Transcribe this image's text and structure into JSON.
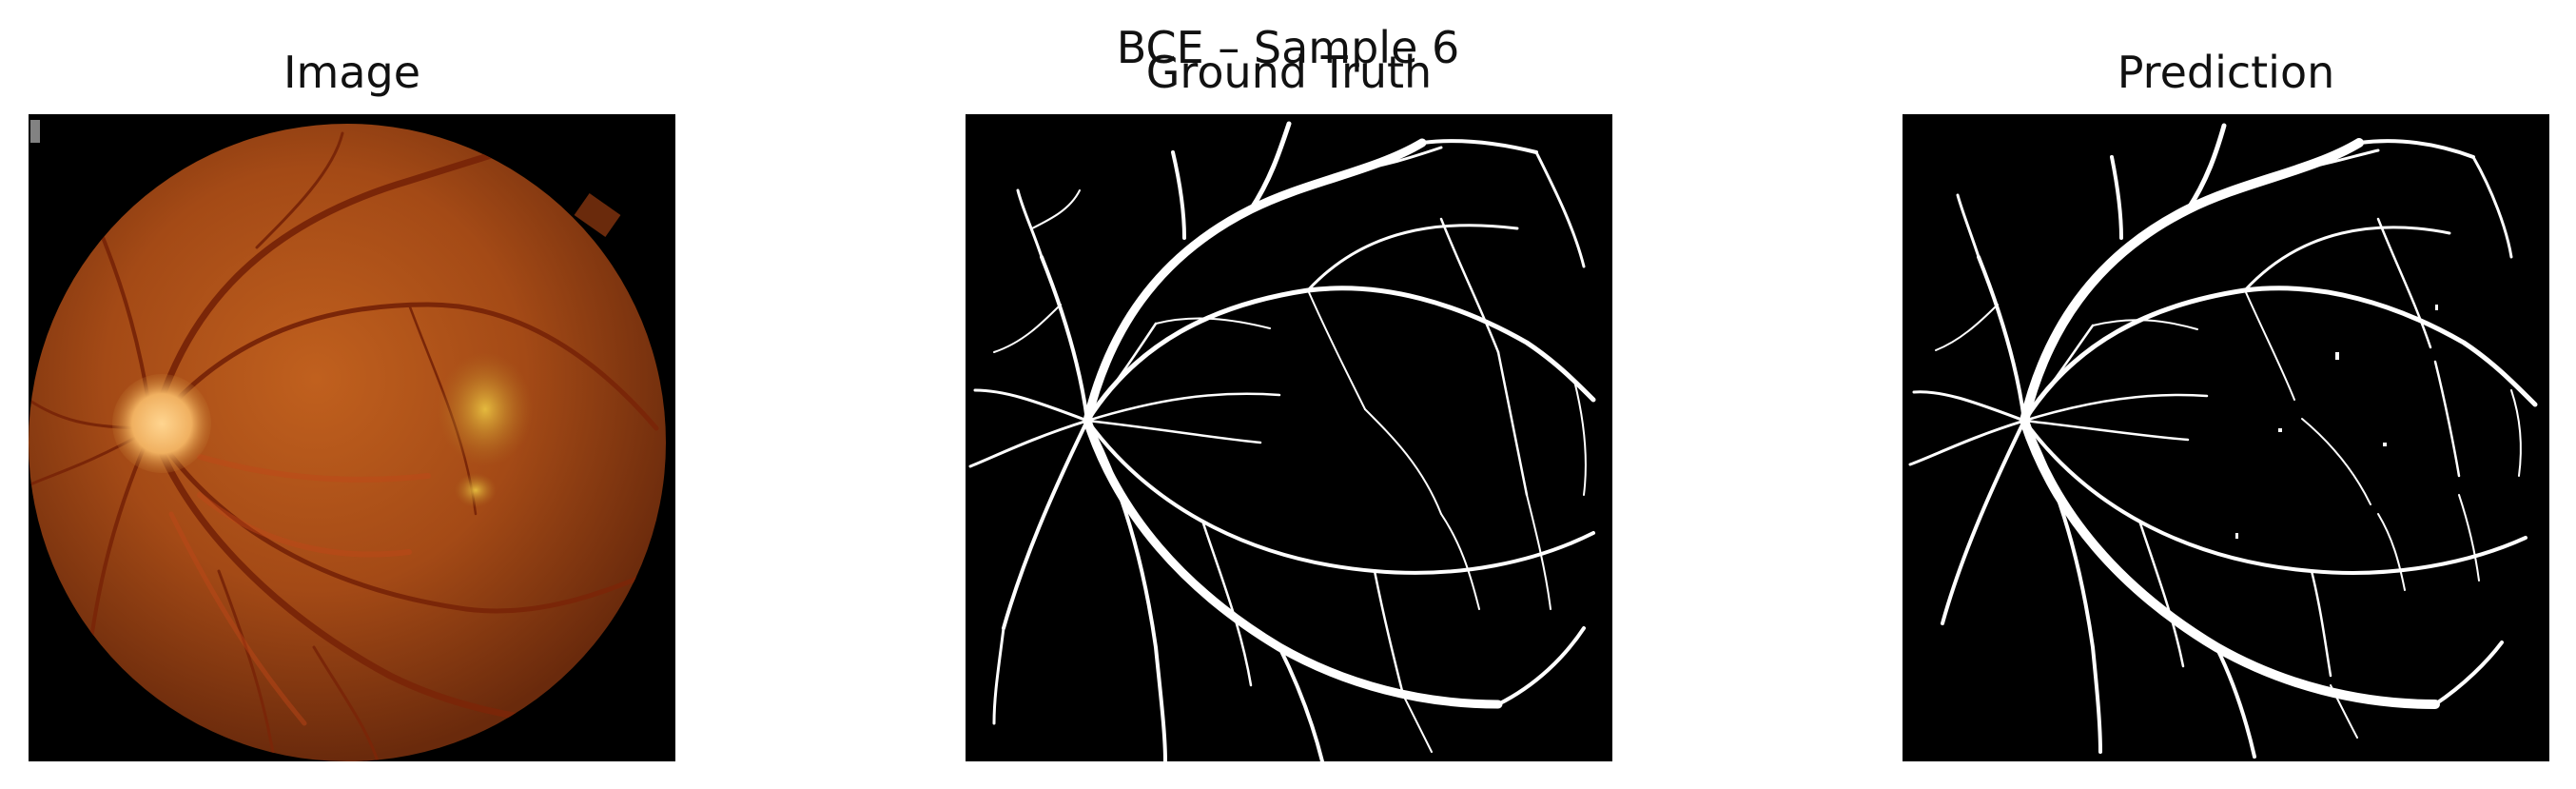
{
  "figure": {
    "suptitle": "BCE – Sample 6",
    "panels": [
      {
        "title": "Image",
        "content": "retinal fundus photograph"
      },
      {
        "title": "Ground Truth",
        "content": "binary vessel mask"
      },
      {
        "title": "Prediction",
        "content": "predicted vessel mask"
      }
    ]
  },
  "colors": {
    "background": "#000000",
    "vessel": "#ffffff",
    "fundus": "#b0501c",
    "optic_disc": "#f0b060"
  }
}
